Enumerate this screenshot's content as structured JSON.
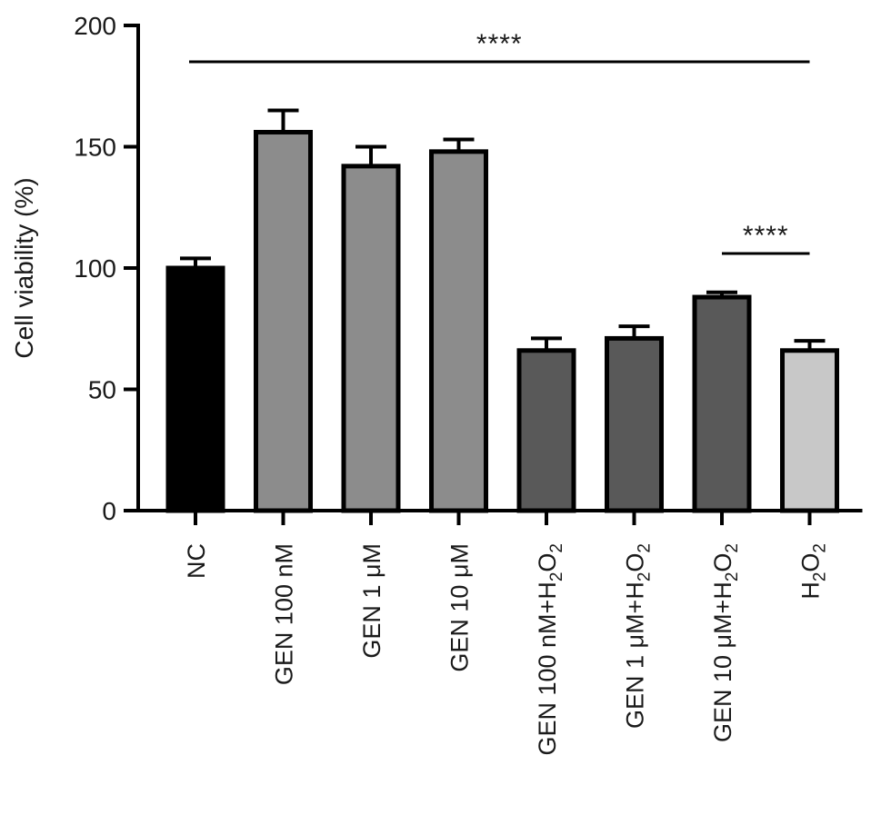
{
  "chart_data": {
    "type": "bar",
    "title": "",
    "xlabel": "",
    "ylabel": "Cell viability (%)",
    "ylim": [
      0,
      200
    ],
    "yticks": [
      0,
      50,
      100,
      150,
      200
    ],
    "grid": false,
    "categories": [
      {
        "base": "NC",
        "sub": "",
        "tail": ""
      },
      {
        "base": "GEN 100 nM",
        "sub": "",
        "tail": ""
      },
      {
        "base": "GEN 1 μM",
        "sub": "",
        "tail": ""
      },
      {
        "base": "GEN 10 μM",
        "sub": "",
        "tail": ""
      },
      {
        "base": "GEN 100 nM+H",
        "sub": "2",
        "tail": "O",
        "sub2": "2"
      },
      {
        "base": "GEN 1 μM+H",
        "sub": "2",
        "tail": "O",
        "sub2": "2"
      },
      {
        "base": "GEN 10 μM+H",
        "sub": "2",
        "tail": "O",
        "sub2": "2"
      },
      {
        "base": "H",
        "sub": "2",
        "tail": "O",
        "sub2": "2"
      }
    ],
    "values": [
      100,
      156,
      142,
      148,
      66,
      71,
      88,
      66
    ],
    "errors": [
      4,
      9,
      8,
      5,
      5,
      5,
      2,
      4
    ],
    "bar_colors": [
      "#000000",
      "#8c8c8c",
      "#8c8c8c",
      "#8c8c8c",
      "#595959",
      "#595959",
      "#595959",
      "#c8c8c8"
    ],
    "significance": [
      {
        "text": "****",
        "from": 0,
        "to": 7,
        "y": 185
      },
      {
        "text": "****",
        "from": 6,
        "to": 7,
        "y": 106
      }
    ]
  }
}
